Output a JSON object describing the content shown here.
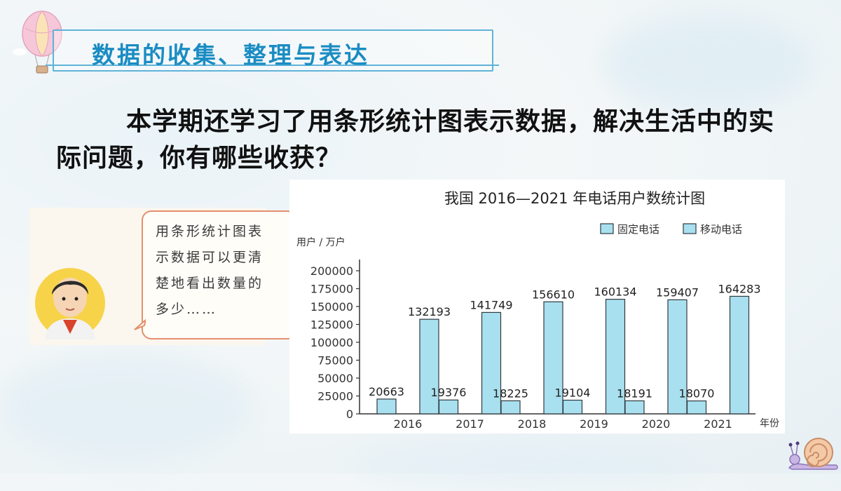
{
  "lesson_title": "数据的收集、整理与表达",
  "question": "本学期还学习了用条形统计图表示数据，解决生活中的实际问题，你有哪些收获？",
  "speech": [
    "用条形统计图表",
    "示数据可以更清",
    "楚地看出数量的",
    "多少……"
  ],
  "icons": [
    "hot-air-balloon-icon",
    "boy-avatar-icon",
    "snail-icon"
  ],
  "colors": {
    "title": "#1a8cc3",
    "banner_border": "#5fb3d8",
    "bar": "#a9e0ef",
    "bar_stroke": "#2f3a40",
    "bubble_border": "#e58f6d"
  },
  "chart_data": {
    "type": "bar",
    "title": "我国 2016—2021 年电话用户数统计图",
    "ylabel": "用户 / 万户",
    "xlabel": "年份",
    "categories": [
      "2016",
      "2017",
      "2018",
      "2019",
      "2020",
      "2021"
    ],
    "series": [
      {
        "name": "固定电话",
        "values": [
          20663,
          19376,
          18225,
          19104,
          18191,
          18070
        ]
      },
      {
        "name": "移动电话",
        "values": [
          132193,
          141749,
          156610,
          160134,
          159407,
          164283
        ]
      }
    ],
    "yticks": [
      0,
      25000,
      50000,
      75000,
      100000,
      125000,
      150000,
      175000,
      200000
    ],
    "ylim": [
      0,
      200000
    ],
    "legend": "top-right",
    "grid": false
  }
}
